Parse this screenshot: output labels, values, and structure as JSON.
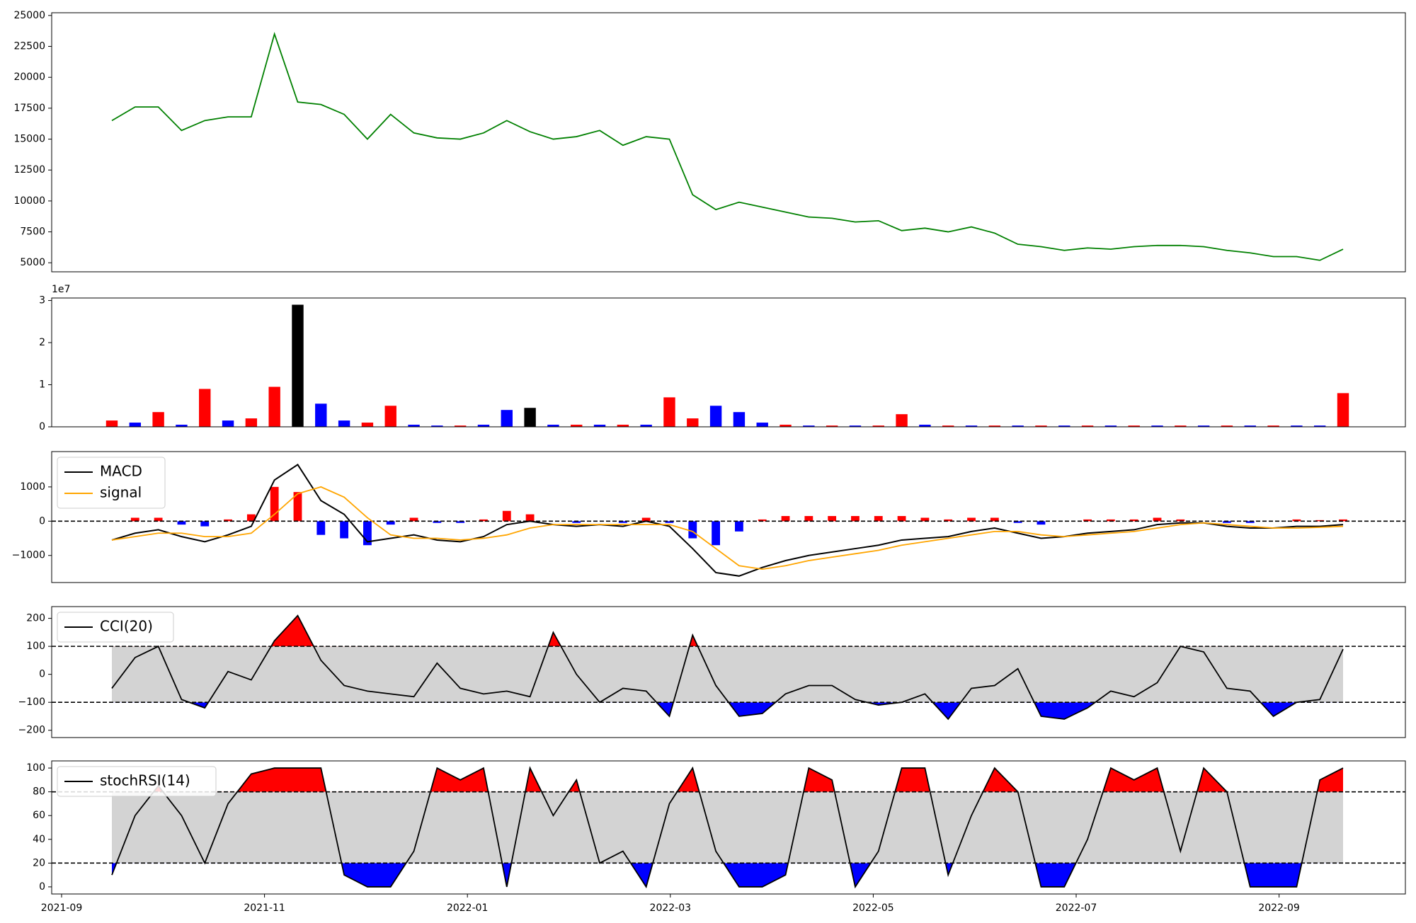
{
  "chart_data": [
    {
      "type": "line",
      "ylim": [
        4270,
        25220
      ],
      "yticks": [
        5000,
        7500,
        10000,
        12500,
        15000,
        17500,
        20000,
        22500,
        25000
      ],
      "series": [
        {
          "color": "green",
          "values": [
            16500,
            17600,
            17600,
            15700,
            16500,
            16800,
            16800,
            23500,
            18000,
            17800,
            17000,
            15000,
            17000,
            15500,
            15100,
            15000,
            15500,
            16500,
            15600,
            15000,
            15200,
            15700,
            14500,
            15200,
            15000,
            10500,
            9300,
            9900,
            9500,
            9100,
            8700,
            8600,
            8300,
            8400,
            7600,
            7800,
            7500,
            7900,
            7400,
            6500,
            6300,
            6000,
            6200,
            6100,
            6300,
            6400,
            6400,
            6300,
            6000,
            5800,
            5500,
            5500,
            5200,
            6100
          ]
        }
      ]
    },
    {
      "type": "bar",
      "ylim": [
        0,
        3.06
      ],
      "yticks": [
        0,
        1,
        2,
        3
      ],
      "offset_label": "1e7",
      "values": [
        0.15,
        0.1,
        0.35,
        0.05,
        0.9,
        0.15,
        0.2,
        0.95,
        2.9,
        0.55,
        0.15,
        0.1,
        0.5,
        0.05,
        0.03,
        0.03,
        0.05,
        0.4,
        0.45,
        0.05,
        0.05,
        0.05,
        0.05,
        0.05,
        0.7,
        0.2,
        0.5,
        0.35,
        0.1,
        0.05,
        0.03,
        0.03,
        0.03,
        0.03,
        0.3,
        0.05,
        0.03,
        0.03,
        0.03,
        0.03,
        0.03,
        0.03,
        0.03,
        0.03,
        0.03,
        0.03,
        0.03,
        0.03,
        0.03,
        0.03,
        0.03,
        0.03,
        0.03,
        0.8
      ],
      "colors": [
        "red",
        "blue",
        "red",
        "blue",
        "red",
        "blue",
        "red",
        "red",
        "black",
        "blue",
        "blue",
        "red",
        "red",
        "blue",
        "blue",
        "red",
        "blue",
        "blue",
        "black",
        "blue",
        "red",
        "blue",
        "red",
        "blue",
        "red",
        "red",
        "blue",
        "blue",
        "blue",
        "red",
        "blue",
        "red",
        "blue",
        "red",
        "red",
        "blue",
        "red",
        "blue",
        "red",
        "blue",
        "red",
        "blue",
        "red",
        "blue",
        "red",
        "blue",
        "red",
        "blue",
        "red",
        "blue",
        "red",
        "blue",
        "blue",
        "red"
      ]
    },
    {
      "type": "line",
      "ylim": [
        -1790,
        2030
      ],
      "yticks": [
        {
          "value": -1000,
          "label": "−1000"
        },
        0,
        1000
      ],
      "hlines": [
        0
      ],
      "legend": "upper left",
      "series": [
        {
          "name": "MACD",
          "color": "black",
          "values": [
            -550,
            -350,
            -250,
            -450,
            -600,
            -400,
            -150,
            1200,
            1650,
            600,
            200,
            -600,
            -500,
            -400,
            -550,
            -600,
            -450,
            -100,
            0,
            -100,
            -150,
            -100,
            -150,
            0,
            -150,
            -800,
            -1500,
            -1600,
            -1350,
            -1150,
            -1000,
            -900,
            -800,
            -700,
            -550,
            -500,
            -450,
            -300,
            -200,
            -350,
            -500,
            -450,
            -350,
            -300,
            -250,
            -100,
            -50,
            -50,
            -150,
            -200,
            -200,
            -150,
            -150,
            -100
          ]
        },
        {
          "name": "signal",
          "color": "orange",
          "values": [
            -550,
            -450,
            -350,
            -350,
            -450,
            -450,
            -350,
            200,
            800,
            1000,
            700,
            100,
            -400,
            -500,
            -500,
            -550,
            -500,
            -400,
            -200,
            -100,
            -100,
            -100,
            -100,
            -100,
            -100,
            -300,
            -800,
            -1300,
            -1400,
            -1300,
            -1150,
            -1050,
            -950,
            -850,
            -700,
            -600,
            -500,
            -400,
            -300,
            -300,
            -400,
            -450,
            -400,
            -350,
            -300,
            -200,
            -100,
            -50,
            -100,
            -150,
            -200,
            -200,
            -180,
            -150
          ]
        }
      ],
      "histogram": {
        "up_color": "red",
        "down_color": "blue",
        "values": [
          0,
          100,
          100,
          -100,
          -150,
          50,
          200,
          1000,
          850,
          -400,
          -500,
          -700,
          -100,
          100,
          -50,
          -50,
          50,
          300,
          200,
          0,
          -50,
          0,
          -50,
          100,
          -50,
          -500,
          -700,
          -300,
          50,
          150,
          150,
          150,
          150,
          150,
          150,
          100,
          50,
          100,
          100,
          -50,
          -100,
          0,
          50,
          50,
          50,
          100,
          50,
          0,
          -50,
          -50,
          0,
          50,
          30,
          50
        ]
      }
    },
    {
      "type": "line",
      "ylim": [
        -226,
        242
      ],
      "yticks": [
        {
          "value": -200,
          "label": "−200"
        },
        {
          "value": -100,
          "label": "−100"
        },
        0,
        100,
        200
      ],
      "thresholds": [
        -100,
        100
      ],
      "band_color": "lightgray",
      "above_color": "red",
      "below_color": "blue",
      "legend": "upper left",
      "series": [
        {
          "name": "CCI(20)",
          "color": "black",
          "values": [
            -50,
            60,
            100,
            -90,
            -120,
            10,
            -20,
            120,
            210,
            50,
            -40,
            -60,
            -70,
            -80,
            40,
            -50,
            -70,
            -60,
            -80,
            150,
            0,
            -100,
            -50,
            -60,
            -150,
            140,
            -40,
            -150,
            -140,
            -70,
            -40,
            -40,
            -90,
            -110,
            -100,
            -70,
            -160,
            -50,
            -40,
            20,
            -150,
            -160,
            -120,
            -60,
            -80,
            -30,
            100,
            80,
            -50,
            -60,
            -150,
            -100,
            -90,
            90
          ]
        }
      ]
    },
    {
      "type": "line",
      "ylim": [
        -6,
        106
      ],
      "yticks": [
        0,
        20,
        40,
        60,
        80,
        100
      ],
      "thresholds": [
        20,
        80
      ],
      "band_color": "lightgray",
      "above_color": "red",
      "below_color": "blue",
      "legend": "upper left",
      "xticks": [
        "2021-09",
        "2021-11",
        "2022-01",
        "2022-03",
        "2022-05",
        "2022-07",
        "2022-09"
      ],
      "series": [
        {
          "name": "stochRSI(14)",
          "color": "black",
          "values": [
            10,
            60,
            85,
            60,
            20,
            70,
            95,
            100,
            100,
            100,
            10,
            0,
            0,
            30,
            100,
            90,
            100,
            0,
            100,
            60,
            90,
            20,
            30,
            0,
            70,
            100,
            30,
            0,
            0,
            10,
            100,
            90,
            0,
            30,
            100,
            100,
            10,
            60,
            100,
            80,
            0,
            0,
            40,
            100,
            90,
            100,
            30,
            100,
            80,
            0,
            0,
            0,
            90,
            100
          ]
        }
      ]
    }
  ]
}
